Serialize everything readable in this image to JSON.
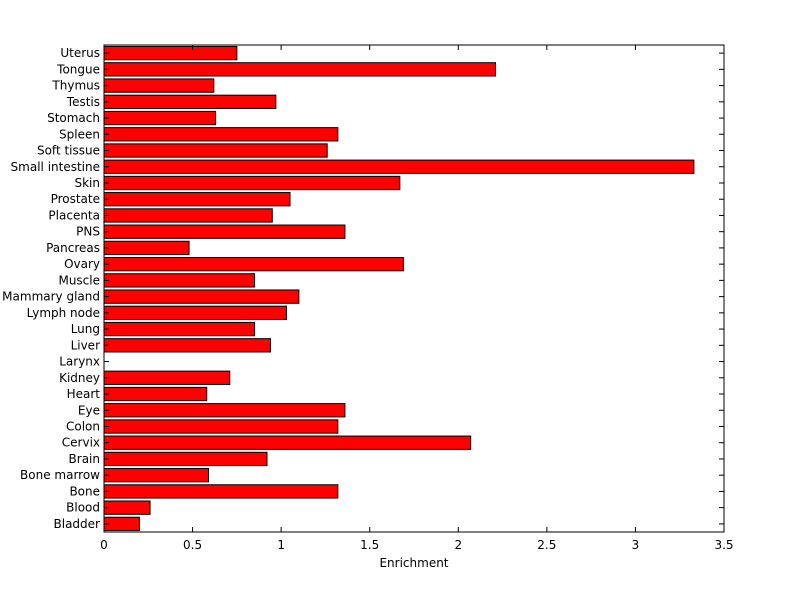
{
  "chart_data": {
    "type": "bar",
    "orientation": "horizontal",
    "title": "",
    "xlabel": "Enrichment",
    "ylabel": "",
    "xlim": [
      0,
      3.5
    ],
    "x_ticks": [
      0,
      0.5,
      1,
      1.5,
      2,
      2.5,
      3,
      3.5
    ],
    "x_tick_labels": [
      "0",
      "0.5",
      "1",
      "1.5",
      "2",
      "2.5",
      "3",
      "3.5"
    ],
    "grid": false,
    "legend": "none",
    "bar_color": "#ff0000",
    "bar_edge_color": "#000000",
    "categories": [
      "Uterus",
      "Tongue",
      "Thymus",
      "Testis",
      "Stomach",
      "Spleen",
      "Soft tissue",
      "Small intestine",
      "Skin",
      "Prostate",
      "Placenta",
      "PNS",
      "Pancreas",
      "Ovary",
      "Muscle",
      "Mammary gland",
      "Lymph node",
      "Lung",
      "Liver",
      "Larynx",
      "Kidney",
      "Heart",
      "Eye",
      "Colon",
      "Cervix",
      "Brain",
      "Bone marrow",
      "Bone",
      "Blood",
      "Bladder"
    ],
    "values": [
      0.75,
      2.21,
      0.62,
      0.97,
      0.63,
      1.32,
      1.26,
      3.33,
      1.67,
      1.05,
      0.95,
      1.36,
      0.48,
      1.69,
      0.85,
      1.1,
      1.03,
      0.85,
      0.94,
      0,
      0.71,
      0.58,
      1.36,
      1.32,
      2.07,
      0.92,
      0.59,
      1.32,
      0.26,
      0.2
    ]
  }
}
